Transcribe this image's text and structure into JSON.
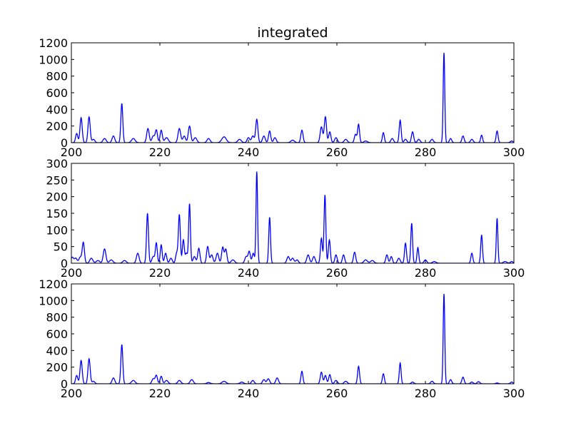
{
  "chart_data": [
    {
      "type": "line",
      "title": "integrated",
      "xlabel": "",
      "ylabel": "",
      "xlim": [
        200,
        300
      ],
      "ylim": [
        0,
        1200
      ],
      "xticks": [
        200,
        220,
        240,
        260,
        280,
        300
      ],
      "yticks": [
        0,
        200,
        400,
        600,
        800,
        1000,
        1200
      ],
      "grid": false,
      "line_color": "#0000ff",
      "series": [
        {
          "peaks": [
            [
              201.2,
              110,
              0.25
            ],
            [
              202.2,
              300,
              0.25
            ],
            [
              204.0,
              310,
              0.25
            ],
            [
              205.0,
              40,
              0.3
            ],
            [
              207.5,
              50,
              0.35
            ],
            [
              209.5,
              80,
              0.3
            ],
            [
              211.4,
              470,
              0.22
            ],
            [
              214.0,
              50,
              0.4
            ],
            [
              217.3,
              170,
              0.28
            ],
            [
              218.5,
              80,
              0.3
            ],
            [
              219.2,
              150,
              0.25
            ],
            [
              220.3,
              150,
              0.25
            ],
            [
              221.5,
              60,
              0.4
            ],
            [
              224.4,
              170,
              0.3
            ],
            [
              225.5,
              80,
              0.3
            ],
            [
              226.7,
              200,
              0.28
            ],
            [
              228.0,
              60,
              0.35
            ],
            [
              231.0,
              50,
              0.35
            ],
            [
              234.5,
              70,
              0.5
            ],
            [
              238.0,
              40,
              0.4
            ],
            [
              240.0,
              60,
              0.3
            ],
            [
              241.0,
              80,
              0.3
            ],
            [
              241.9,
              280,
              0.25
            ],
            [
              243.5,
              80,
              0.3
            ],
            [
              244.8,
              140,
              0.25
            ],
            [
              246.0,
              60,
              0.3
            ],
            [
              250.0,
              30,
              0.4
            ],
            [
              252.1,
              150,
              0.25
            ],
            [
              256.5,
              190,
              0.28
            ],
            [
              257.4,
              310,
              0.25
            ],
            [
              258.4,
              130,
              0.25
            ],
            [
              259.8,
              60,
              0.3
            ],
            [
              262.0,
              40,
              0.35
            ],
            [
              264.2,
              100,
              0.25
            ],
            [
              264.9,
              220,
              0.22
            ],
            [
              266.5,
              20,
              0.4
            ],
            [
              270.5,
              120,
              0.22
            ],
            [
              272.5,
              50,
              0.3
            ],
            [
              274.3,
              270,
              0.22
            ],
            [
              275.5,
              40,
              0.3
            ],
            [
              277.1,
              130,
              0.25
            ],
            [
              278.5,
              40,
              0.3
            ],
            [
              281.5,
              40,
              0.3
            ],
            [
              284.2,
              1080,
              0.18
            ],
            [
              285.7,
              50,
              0.25
            ],
            [
              288.5,
              80,
              0.25
            ],
            [
              290.5,
              40,
              0.3
            ],
            [
              292.7,
              90,
              0.22
            ],
            [
              296.2,
              140,
              0.22
            ],
            [
              299.5,
              20,
              0.3
            ]
          ]
        }
      ]
    },
    {
      "type": "line",
      "title": "",
      "xlabel": "",
      "ylabel": "",
      "xlim": [
        200,
        300
      ],
      "ylim": [
        0,
        300
      ],
      "xticks": [
        200,
        220,
        240,
        260,
        280,
        300
      ],
      "yticks": [
        0,
        50,
        100,
        150,
        200,
        250,
        300
      ],
      "grid": false,
      "line_color": "#0000ff",
      "series": [
        {
          "peaks": [
            [
              200.2,
              18,
              0.3
            ],
            [
              201.0,
              15,
              0.3
            ],
            [
              202.0,
              18,
              0.3
            ],
            [
              202.7,
              62,
              0.25
            ],
            [
              204.5,
              15,
              0.35
            ],
            [
              206.0,
              8,
              0.4
            ],
            [
              207.5,
              43,
              0.3
            ],
            [
              209.0,
              10,
              0.4
            ],
            [
              212.0,
              8,
              0.4
            ],
            [
              215.0,
              30,
              0.3
            ],
            [
              217.2,
              150,
              0.22
            ],
            [
              218.5,
              20,
              0.3
            ],
            [
              219.2,
              60,
              0.22
            ],
            [
              220.3,
              55,
              0.22
            ],
            [
              221.3,
              30,
              0.25
            ],
            [
              222.5,
              15,
              0.3
            ],
            [
              223.8,
              30,
              0.25
            ],
            [
              224.4,
              145,
              0.22
            ],
            [
              225.3,
              70,
              0.22
            ],
            [
              226.0,
              30,
              0.25
            ],
            [
              226.7,
              178,
              0.2
            ],
            [
              227.8,
              20,
              0.3
            ],
            [
              228.8,
              45,
              0.25
            ],
            [
              230.8,
              50,
              0.25
            ],
            [
              231.7,
              25,
              0.3
            ],
            [
              233.0,
              30,
              0.3
            ],
            [
              234.2,
              48,
              0.25
            ],
            [
              234.9,
              42,
              0.25
            ],
            [
              236.5,
              10,
              0.4
            ],
            [
              239.5,
              20,
              0.3
            ],
            [
              240.2,
              35,
              0.25
            ],
            [
              241.1,
              30,
              0.25
            ],
            [
              241.9,
              275,
              0.18
            ],
            [
              244.8,
              138,
              0.2
            ],
            [
              249.0,
              20,
              0.3
            ],
            [
              250.0,
              15,
              0.3
            ],
            [
              251.0,
              10,
              0.3
            ],
            [
              253.5,
              25,
              0.3
            ],
            [
              254.8,
              20,
              0.3
            ],
            [
              256.5,
              75,
              0.22
            ],
            [
              257.3,
              205,
              0.2
            ],
            [
              258.3,
              70,
              0.22
            ],
            [
              259.8,
              25,
              0.25
            ],
            [
              261.5,
              25,
              0.25
            ],
            [
              264.0,
              33,
              0.25
            ],
            [
              266.5,
              10,
              0.4
            ],
            [
              268.0,
              8,
              0.4
            ],
            [
              271.3,
              25,
              0.25
            ],
            [
              272.3,
              20,
              0.25
            ],
            [
              274.0,
              15,
              0.3
            ],
            [
              275.5,
              60,
              0.22
            ],
            [
              276.9,
              120,
              0.2
            ],
            [
              278.3,
              47,
              0.2
            ],
            [
              280.0,
              10,
              0.3
            ],
            [
              282.0,
              5,
              0.4
            ],
            [
              290.5,
              30,
              0.22
            ],
            [
              292.7,
              85,
              0.2
            ],
            [
              296.2,
              135,
              0.18
            ],
            [
              298.0,
              5,
              0.4
            ],
            [
              299.5,
              5,
              0.3
            ]
          ]
        }
      ]
    },
    {
      "type": "line",
      "title": "",
      "xlabel": "",
      "ylabel": "",
      "xlim": [
        200,
        300
      ],
      "ylim": [
        0,
        1200
      ],
      "xticks": [
        200,
        220,
        240,
        260,
        280,
        300
      ],
      "yticks": [
        0,
        200,
        400,
        600,
        800,
        1000,
        1200
      ],
      "grid": false,
      "line_color": "#0000ff",
      "series": [
        {
          "peaks": [
            [
              201.2,
              100,
              0.25
            ],
            [
              202.2,
              280,
              0.25
            ],
            [
              204.0,
              300,
              0.25
            ],
            [
              205.0,
              30,
              0.3
            ],
            [
              209.5,
              70,
              0.3
            ],
            [
              211.4,
              470,
              0.22
            ],
            [
              214.0,
              40,
              0.4
            ],
            [
              218.5,
              60,
              0.3
            ],
            [
              219.2,
              100,
              0.25
            ],
            [
              220.3,
              90,
              0.25
            ],
            [
              221.5,
              40,
              0.35
            ],
            [
              224.4,
              40,
              0.35
            ],
            [
              227.2,
              50,
              0.35
            ],
            [
              231.0,
              15,
              0.4
            ],
            [
              234.5,
              30,
              0.45
            ],
            [
              238.5,
              20,
              0.4
            ],
            [
              241.0,
              40,
              0.3
            ],
            [
              243.5,
              50,
              0.3
            ],
            [
              244.5,
              60,
              0.3
            ],
            [
              246.5,
              70,
              0.3
            ],
            [
              252.1,
              150,
              0.22
            ],
            [
              256.5,
              140,
              0.25
            ],
            [
              257.4,
              100,
              0.25
            ],
            [
              258.4,
              110,
              0.25
            ],
            [
              259.8,
              40,
              0.3
            ],
            [
              262.0,
              30,
              0.35
            ],
            [
              264.9,
              210,
              0.22
            ],
            [
              270.5,
              120,
              0.22
            ],
            [
              274.3,
              250,
              0.2
            ],
            [
              277.1,
              20,
              0.3
            ],
            [
              281.5,
              30,
              0.3
            ],
            [
              284.2,
              1080,
              0.18
            ],
            [
              285.7,
              50,
              0.25
            ],
            [
              288.5,
              80,
              0.25
            ],
            [
              290.5,
              20,
              0.3
            ],
            [
              292.0,
              25,
              0.3
            ],
            [
              296.2,
              10,
              0.3
            ],
            [
              299.5,
              20,
              0.3
            ]
          ]
        }
      ]
    }
  ]
}
